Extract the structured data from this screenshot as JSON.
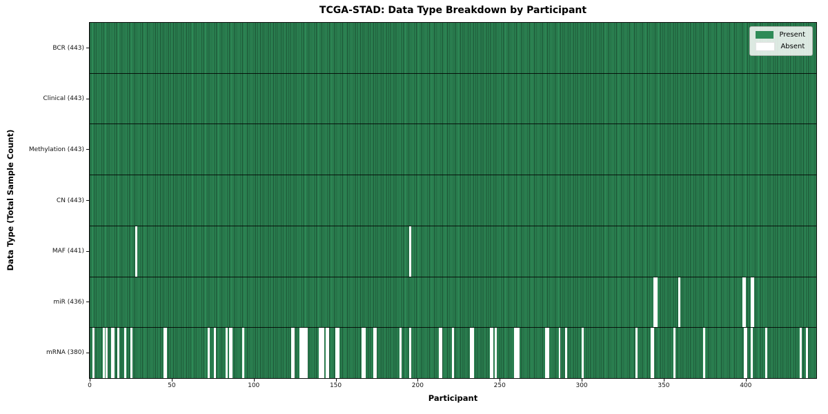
{
  "title": "TCGA-STAD: Data Type Breakdown by Participant",
  "chart_data": {
    "type": "heatmap",
    "title": "TCGA-STAD: Data Type Breakdown by Participant",
    "xlabel": "Participant",
    "ylabel": "Data Type (Total Sample Count)",
    "x_ticks": [
      0,
      50,
      100,
      150,
      200,
      250,
      300,
      350,
      400
    ],
    "x_range": [
      0,
      443
    ],
    "n_participants": 443,
    "grid": false,
    "legend_position": "upper-right-inside",
    "legend": [
      {
        "label": "Present",
        "color": "#2e8b57"
      },
      {
        "label": "Absent",
        "color": "#ffffff"
      }
    ],
    "colors": {
      "present": "#2e8b57",
      "absent": "#ffffff",
      "cell_edge": "rgba(0,0,0,0.45)",
      "row_divider": "rgba(0,0,0,0.85)",
      "spine": "#0a0a0a"
    },
    "rows": [
      {
        "label": "BCR (443)",
        "data_type": "BCR",
        "total": 443,
        "absent": []
      },
      {
        "label": "Clinical (443)",
        "data_type": "Clinical",
        "total": 443,
        "absent": []
      },
      {
        "label": "Methylation (443)",
        "data_type": "Methylation",
        "total": 443,
        "absent": []
      },
      {
        "label": "CN (443)",
        "data_type": "CN",
        "total": 443,
        "absent": []
      },
      {
        "label": "MAF (441)",
        "data_type": "MAF",
        "total": 441,
        "absent": [
          28,
          195
        ]
      },
      {
        "label": "miR (436)",
        "data_type": "miR",
        "total": 436,
        "absent": [
          344,
          345,
          359,
          398,
          399,
          403,
          404
        ]
      },
      {
        "label": "mRNA (380)",
        "data_type": "mRNA",
        "total": 380,
        "absent": [
          2,
          8,
          10,
          13,
          14,
          17,
          21,
          25,
          45,
          46,
          72,
          76,
          83,
          85,
          86,
          93,
          123,
          124,
          128,
          129,
          130,
          131,
          132,
          140,
          141,
          142,
          144,
          145,
          150,
          151,
          166,
          167,
          173,
          174,
          189,
          195,
          213,
          214,
          221,
          232,
          233,
          244,
          245,
          247,
          259,
          260,
          261,
          278,
          279,
          286,
          290,
          300,
          333,
          342,
          343,
          356,
          374,
          399,
          400,
          403,
          412,
          433,
          437
        ]
      }
    ]
  }
}
